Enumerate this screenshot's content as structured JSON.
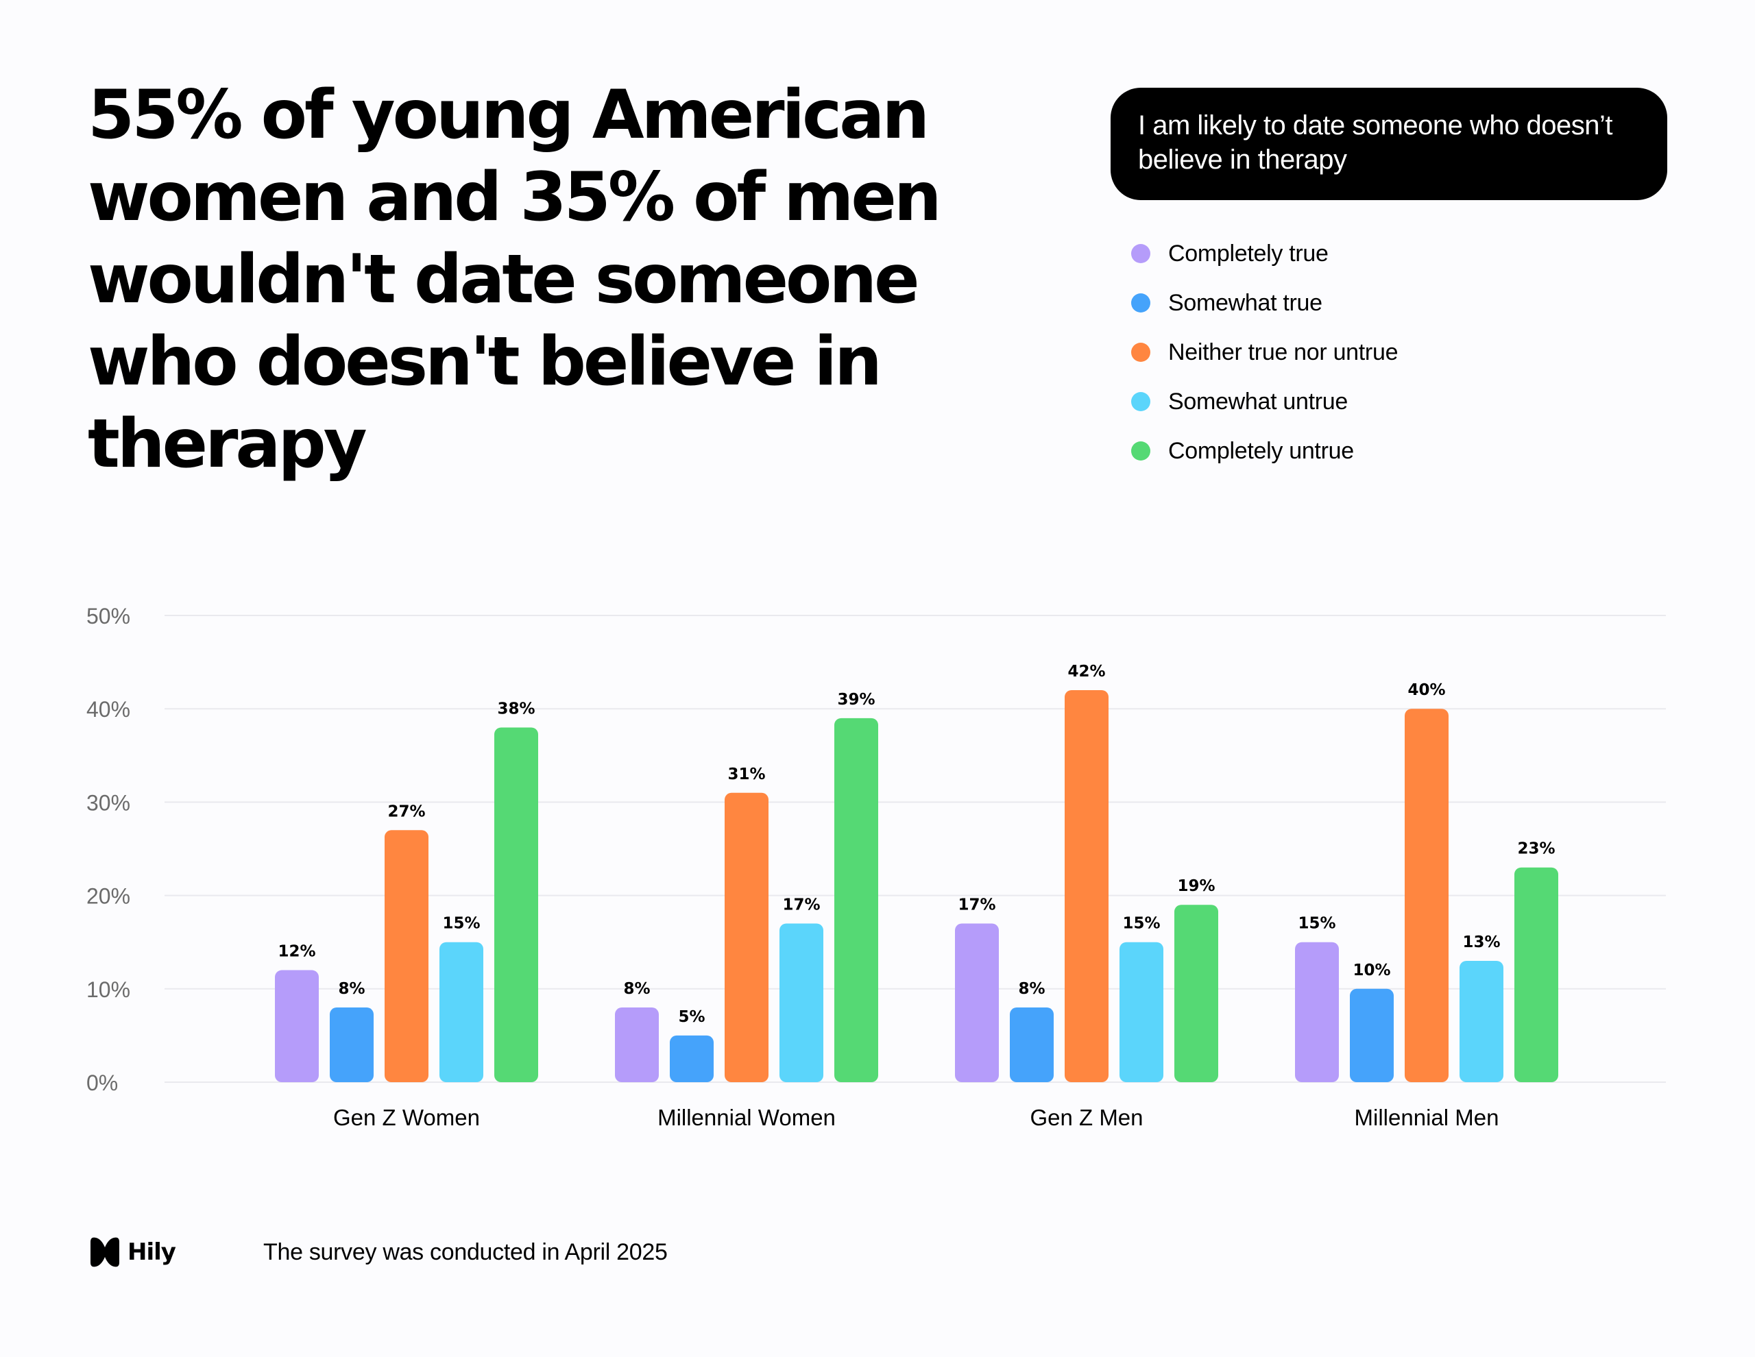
{
  "headline": "55% of young American women and 35% of men wouldn't date someone who doesn't believe in therapy",
  "colors": {
    "background": "#fcfcfe",
    "Completely true": "#b59cfa",
    "Somewhat true": "#45a3fb",
    "Neither true nor untrue": "#ff8640",
    "Somewhat untrue": "#5bd5fb",
    "Completely untrue": "#55d974"
  },
  "chart_data": {
    "type": "bar",
    "title": "I am likely to date someone who doesn’t believe in therapy",
    "categories": [
      "Gen Z Women",
      "Millennial Women",
      "Gen Z Men",
      "Millennial Men"
    ],
    "series": [
      {
        "name": "Completely true",
        "values": [
          12,
          8,
          17,
          15
        ]
      },
      {
        "name": "Somewhat true",
        "values": [
          8,
          5,
          8,
          10
        ]
      },
      {
        "name": "Neither true nor untrue",
        "values": [
          27,
          31,
          42,
          40
        ]
      },
      {
        "name": "Somewhat untrue",
        "values": [
          15,
          17,
          15,
          13
        ]
      },
      {
        "name": "Completely untrue",
        "values": [
          38,
          39,
          19,
          23
        ]
      }
    ],
    "data_labels": [
      [
        "12%",
        "8%",
        "17%",
        "15%"
      ],
      [
        "8%",
        "5%",
        "8%",
        "10%"
      ],
      [
        "27%",
        "31%",
        "42%",
        "40%"
      ],
      [
        "15%",
        "17%",
        "15%",
        "13%"
      ],
      [
        "38%",
        "39%",
        "19%",
        "23%"
      ]
    ],
    "y_ticks": [
      0,
      10,
      20,
      30,
      40,
      50
    ],
    "y_tick_labels": [
      "0%",
      "10%",
      "20%",
      "30%",
      "40%",
      "50%"
    ],
    "ylim": [
      0,
      50
    ],
    "grid": true,
    "legend_position": "top-right",
    "xlabel": "",
    "ylabel": ""
  },
  "footer": {
    "brand": "Hily",
    "note": "The survey was conducted in April 2025"
  }
}
